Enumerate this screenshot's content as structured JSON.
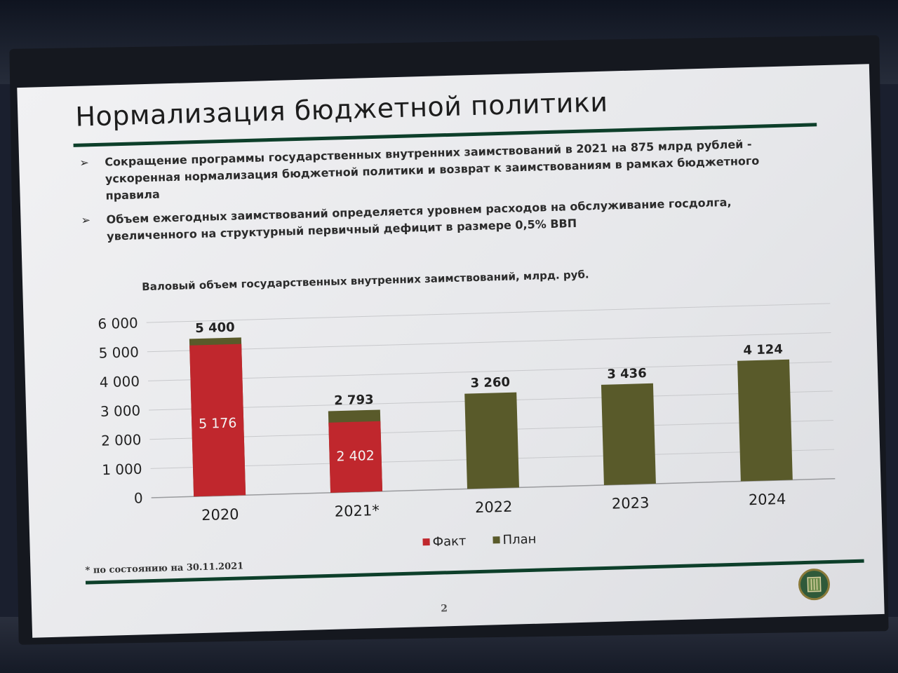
{
  "slide": {
    "title": "Нормализация бюджетной политики",
    "bullets": [
      "Сокращение программы государственных внутренних заимствований в 2021 на 875 млрд рублей - ускоренная нормализация бюджетной политики и возврат к заимствованиям в рамках бюджетного правила",
      "Объем ежегодных заимствований определяется уровнем расходов на обслуживание госдолга, увеличенного на структурный первичный дефицит в размере 0,5% ВВП"
    ],
    "footnote": "* по состоянию на 30.11.2021",
    "page_number": "2"
  },
  "chart_data": {
    "type": "bar",
    "title": "Валовый объем государственных внутренних заимствований, млрд. руб.",
    "categories": [
      "2020",
      "2021*",
      "2022",
      "2023",
      "2024"
    ],
    "series": [
      {
        "name": "Факт",
        "color": "#c0272d",
        "values": [
          5176,
          2402,
          null,
          null,
          null
        ]
      },
      {
        "name": "План",
        "color": "#595a2a",
        "values": [
          5400,
          2793,
          3260,
          3436,
          4124
        ]
      }
    ],
    "total_labels": [
      "5 400",
      "2 793",
      "3 260",
      "3 436",
      "4 124"
    ],
    "fact_labels": [
      "5 176",
      "2 402",
      "",
      "",
      ""
    ],
    "y_ticks": [
      "0",
      "1 000",
      "2 000",
      "3 000",
      "4 000",
      "5 000",
      "6 000"
    ],
    "ylim": [
      0,
      6000
    ],
    "grid": true,
    "legend_position": "bottom"
  },
  "colors": {
    "accent_green": "#0d3f2a",
    "fact_red": "#c0272d",
    "plan_olive": "#595a2a"
  }
}
